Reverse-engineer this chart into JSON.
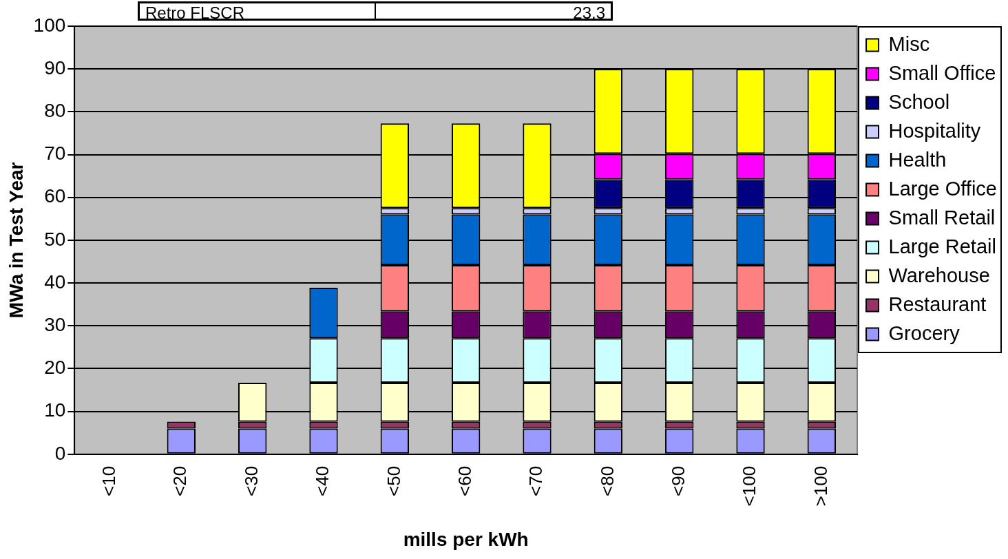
{
  "chart_data": {
    "type": "bar",
    "stacked": true,
    "xlabel": "mills per kWh",
    "ylabel": "MWa in Test Year",
    "categories": [
      "<10",
      "<20",
      "<30",
      "<40",
      "<50",
      "<60",
      "<70",
      "<80",
      "<90",
      "<100",
      ">100"
    ],
    "ylim": [
      0,
      100
    ],
    "yticks": [
      0,
      10,
      20,
      30,
      40,
      50,
      60,
      70,
      80,
      90,
      100
    ],
    "grid": "y",
    "legend": "right",
    "annotations": [
      "Retro FLSCR",
      "23.3"
    ],
    "series": [
      {
        "name": "Grocery",
        "color": "#9999ff",
        "values": [
          null,
          6,
          6,
          6,
          6,
          6,
          6,
          6,
          6,
          6,
          6
        ]
      },
      {
        "name": "Restaurant",
        "color": "#993366",
        "values": [
          null,
          1.6,
          1.6,
          1.6,
          1.6,
          1.6,
          1.6,
          1.6,
          1.6,
          1.6,
          1.6
        ]
      },
      {
        "name": "Warehouse",
        "color": "#ffffcc",
        "values": [
          null,
          null,
          9.1,
          9.1,
          9.1,
          9.1,
          9.1,
          9.1,
          9.1,
          9.1,
          9.1
        ]
      },
      {
        "name": "Large Retail",
        "color": "#ccffff",
        "values": [
          null,
          null,
          null,
          10.4,
          10.4,
          10.4,
          10.4,
          10.4,
          10.4,
          10.4,
          10.4
        ]
      },
      {
        "name": "Small Retail",
        "color": "#660066",
        "values": [
          null,
          null,
          null,
          null,
          6.3,
          6.3,
          6.3,
          6.3,
          6.3,
          6.3,
          6.3
        ]
      },
      {
        "name": "Large Office",
        "color": "#ff8080",
        "values": [
          null,
          null,
          null,
          null,
          10.8,
          10.8,
          10.8,
          10.8,
          10.8,
          10.8,
          10.8
        ]
      },
      {
        "name": "Health",
        "color": "#0066cc",
        "values": [
          null,
          null,
          null,
          11.8,
          11.8,
          11.8,
          11.8,
          11.8,
          11.8,
          11.8,
          11.8
        ]
      },
      {
        "name": "Hospitality",
        "color": "#ccccff",
        "values": [
          null,
          null,
          null,
          null,
          1.5,
          1.5,
          1.5,
          1.5,
          1.5,
          1.5,
          1.5
        ]
      },
      {
        "name": "School",
        "color": "#000080",
        "values": [
          null,
          null,
          null,
          null,
          null,
          null,
          null,
          6.7,
          6.7,
          6.7,
          6.7
        ]
      },
      {
        "name": "Small Office",
        "color": "#ff00ff",
        "values": [
          null,
          null,
          null,
          null,
          null,
          null,
          null,
          6,
          6,
          6,
          6
        ]
      },
      {
        "name": "Misc",
        "color": "#ffff00",
        "values": [
          null,
          null,
          null,
          null,
          19.8,
          19.8,
          19.8,
          19.8,
          19.8,
          19.8,
          19.8
        ]
      }
    ]
  }
}
